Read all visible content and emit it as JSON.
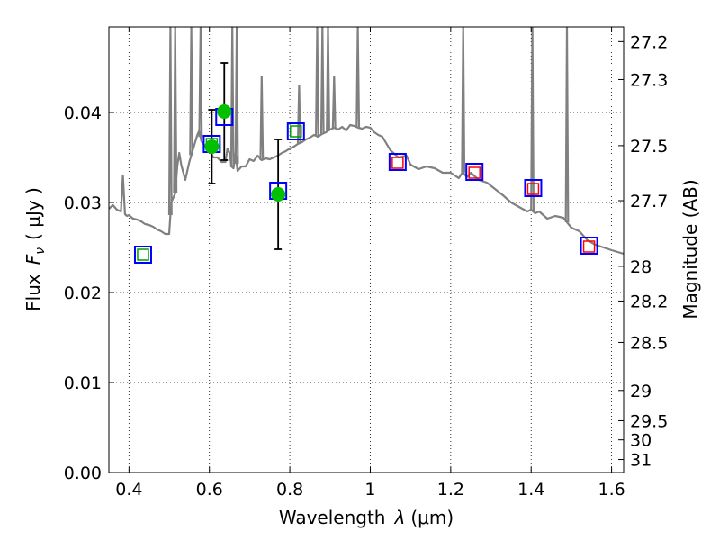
{
  "chart_data": {
    "type": "scatter",
    "xlabel_prefix": "Wavelength",
    "xlabel_symbol": "λ",
    "xlabel_unit": "(μm)",
    "ylabel_prefix": "Flux",
    "ylabel_symbol": "F",
    "ylabel_subscript": "ν",
    "ylabel_unit": "( μJy )",
    "y2label": "Magnitude (AB)",
    "xlim": [
      0.35,
      1.63
    ],
    "ylim": [
      0.0,
      0.0495
    ],
    "grid": true,
    "x_ticks": [
      {
        "value": 0.4,
        "label": "0.4"
      },
      {
        "value": 0.6,
        "label": "0.6"
      },
      {
        "value": 0.8,
        "label": "0.8"
      },
      {
        "value": 1.0,
        "label": "1"
      },
      {
        "value": 1.2,
        "label": "1.2"
      },
      {
        "value": 1.4,
        "label": "1.4"
      },
      {
        "value": 1.6,
        "label": "1.6"
      }
    ],
    "y_ticks": [
      {
        "value": 0.0,
        "label": "0.00"
      },
      {
        "value": 0.01,
        "label": "0.01"
      },
      {
        "value": 0.02,
        "label": "0.02"
      },
      {
        "value": 0.03,
        "label": "0.03"
      },
      {
        "value": 0.04,
        "label": "0.04"
      }
    ],
    "mag_ticks": [
      {
        "value": 27.2,
        "label": "27.2"
      },
      {
        "value": 27.3,
        "label": "27.3"
      },
      {
        "value": 27.5,
        "label": "27.5"
      },
      {
        "value": 27.7,
        "label": "27.7"
      },
      {
        "value": 28.0,
        "label": "28"
      },
      {
        "value": 28.2,
        "label": "28.2"
      },
      {
        "value": 28.5,
        "label": "28.5"
      },
      {
        "value": 29.0,
        "label": "29"
      },
      {
        "value": 29.5,
        "label": "29.5"
      },
      {
        "value": 30.0,
        "label": "30"
      },
      {
        "value": 31.0,
        "label": "31"
      }
    ],
    "model_spectrum": {
      "color": "#808080",
      "x": [
        0.35,
        0.36,
        0.37,
        0.38,
        0.385,
        0.39,
        0.395,
        0.4,
        0.41,
        0.42,
        0.43,
        0.44,
        0.45,
        0.46,
        0.47,
        0.48,
        0.49,
        0.5,
        0.505,
        0.51,
        0.515,
        0.52,
        0.525,
        0.53,
        0.54,
        0.55,
        0.56,
        0.57,
        0.575,
        0.58,
        0.59,
        0.6,
        0.61,
        0.62,
        0.63,
        0.64,
        0.645,
        0.65,
        0.655,
        0.66,
        0.665,
        0.67,
        0.68,
        0.69,
        0.7,
        0.71,
        0.72,
        0.73,
        0.74,
        0.75,
        0.76,
        0.77,
        0.78,
        0.79,
        0.8,
        0.81,
        0.82,
        0.83,
        0.84,
        0.85,
        0.86,
        0.87,
        0.88,
        0.89,
        0.9,
        0.91,
        0.92,
        0.93,
        0.94,
        0.95,
        0.96,
        0.97,
        0.98,
        0.99,
        1.0,
        1.01,
        1.02,
        1.03,
        1.05,
        1.07,
        1.09,
        1.1,
        1.12,
        1.14,
        1.16,
        1.18,
        1.2,
        1.22,
        1.23,
        1.24,
        1.25,
        1.27,
        1.29,
        1.31,
        1.33,
        1.35,
        1.37,
        1.39,
        1.4,
        1.41,
        1.42,
        1.44,
        1.46,
        1.48,
        1.5,
        1.52,
        1.54,
        1.56,
        1.58,
        1.6,
        1.63
      ],
      "y": [
        0.0293,
        0.0297,
        0.0292,
        0.029,
        0.033,
        0.0287,
        0.0285,
        0.0286,
        0.0282,
        0.0281,
        0.0279,
        0.0276,
        0.0275,
        0.0273,
        0.027,
        0.0268,
        0.0265,
        0.0265,
        0.03,
        0.0305,
        0.031,
        0.034,
        0.0355,
        0.0342,
        0.0325,
        0.0345,
        0.036,
        0.0375,
        0.038,
        0.0368,
        0.0362,
        0.0358,
        0.035,
        0.035,
        0.0345,
        0.0345,
        0.036,
        0.0355,
        0.034,
        0.0338,
        0.0355,
        0.0335,
        0.034,
        0.034,
        0.0348,
        0.0346,
        0.0352,
        0.0347,
        0.0349,
        0.0348,
        0.035,
        0.0352,
        0.0355,
        0.0357,
        0.036,
        0.0362,
        0.0365,
        0.0367,
        0.037,
        0.0372,
        0.0375,
        0.0373,
        0.0376,
        0.0378,
        0.0381,
        0.0383,
        0.0381,
        0.0384,
        0.038,
        0.0386,
        0.0385,
        0.0383,
        0.0382,
        0.0384,
        0.0383,
        0.0378,
        0.0375,
        0.0373,
        0.0358,
        0.035,
        0.0352,
        0.0342,
        0.0337,
        0.034,
        0.0338,
        0.0333,
        0.0333,
        0.0327,
        0.0334,
        0.0328,
        0.0333,
        0.0325,
        0.0322,
        0.0315,
        0.0308,
        0.03,
        0.0295,
        0.029,
        0.0292,
        0.0288,
        0.029,
        0.0282,
        0.0285,
        0.0283,
        0.0272,
        0.0268,
        0.0258,
        0.0253,
        0.025,
        0.0247,
        0.0243
      ]
    },
    "emission_spikes": [
      {
        "x": 0.503,
        "top": 0.0495
      },
      {
        "x": 0.515,
        "top": 0.0495
      },
      {
        "x": 0.555,
        "top": 0.0495
      },
      {
        "x": 0.578,
        "top": 0.0495
      },
      {
        "x": 0.657,
        "top": 0.0495
      },
      {
        "x": 0.668,
        "top": 0.0495
      },
      {
        "x": 0.73,
        "top": 0.044
      },
      {
        "x": 0.823,
        "top": 0.043
      },
      {
        "x": 0.868,
        "top": 0.0495
      },
      {
        "x": 0.881,
        "top": 0.0495
      },
      {
        "x": 0.895,
        "top": 0.0495
      },
      {
        "x": 0.91,
        "top": 0.044
      },
      {
        "x": 0.969,
        "top": 0.0495
      },
      {
        "x": 1.231,
        "top": 0.0495
      },
      {
        "x": 1.403,
        "top": 0.0495
      },
      {
        "x": 1.489,
        "top": 0.0495
      }
    ],
    "observed_points": {
      "color": "#00c000",
      "x": [
        0.606,
        0.637,
        0.771
      ],
      "y": [
        0.0362,
        0.0401,
        0.0309
      ],
      "yerr": [
        0.0041,
        0.0054,
        0.0061
      ]
    },
    "model_photometry_blue": {
      "color": "#0000ff",
      "x": [
        0.435,
        0.606,
        0.637,
        0.771,
        0.815,
        1.068,
        1.259,
        1.405,
        1.544
      ],
      "y": [
        0.0242,
        0.0365,
        0.0395,
        0.0313,
        0.0379,
        0.0345,
        0.0334,
        0.0316,
        0.0252
      ]
    },
    "inner_green_squares": {
      "color": "#00a000",
      "x": [
        0.435,
        0.606,
        0.815
      ],
      "y": [
        0.0242,
        0.0365,
        0.0379
      ]
    },
    "inner_red_squares": {
      "color": "#ff0000",
      "x": [
        1.068,
        1.259,
        1.405,
        1.544
      ],
      "y": [
        0.0344,
        0.0333,
        0.0315,
        0.0251
      ]
    }
  }
}
